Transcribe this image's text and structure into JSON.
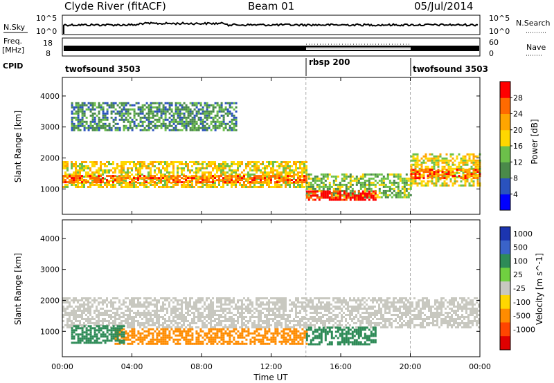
{
  "header": {
    "station": "Clyde River (fitACF)",
    "beam": "Beam 01",
    "date": "05/Jul/2014"
  },
  "top_panels": {
    "nsky_label": "N.Sky",
    "nsearch_label": "N.Search",
    "nsky_ticks": [
      "10^5",
      "10^0"
    ],
    "nsearch_ticks": [
      "10^5",
      "10^0"
    ],
    "freq_label": "Freq.",
    "freq_unit": "[MHz]",
    "freq_ticks": [
      "18",
      "8"
    ],
    "nave_label": "Nave",
    "nave_ticks": [
      "60",
      "0"
    ],
    "cpid_label": "CPID",
    "cpid_segments": [
      {
        "label": "twofsound 3503",
        "start": 0,
        "end": 14
      },
      {
        "label": "rbsp 200",
        "start": 14,
        "end": 20
      },
      {
        "label": "twofsound 3503",
        "start": 20,
        "end": 24
      }
    ]
  },
  "x_axis": {
    "label": "Time UT",
    "range": [
      0,
      24
    ],
    "tick_values": [
      0,
      4,
      8,
      12,
      16,
      20,
      24
    ],
    "tick_labels": [
      "00:00",
      "04:00",
      "08:00",
      "12:00",
      "16:00",
      "20:00",
      "00:00"
    ]
  },
  "power_panel": {
    "ylabel": "Slant Range [km]",
    "yticks": [
      1000,
      2000,
      3000,
      4000
    ],
    "ylim": [
      180,
      4600
    ],
    "colorbar_label": "Power [dB]",
    "colorbar_ticks": [
      "4",
      "8",
      "12",
      "16",
      "20",
      "24",
      "28"
    ],
    "colors": [
      "#0000ff",
      "#2a52be",
      "#4a8a4a",
      "#6cc04a",
      "#ffd700",
      "#ffa500",
      "#ff6a00",
      "#ff0000"
    ]
  },
  "velocity_panel": {
    "ylabel": "Slant Range [km]",
    "yticks": [
      1000,
      2000,
      3000,
      4000
    ],
    "ylim": [
      180,
      4600
    ],
    "colorbar_label": "Velocity [m s^-1]",
    "colorbar_ticks": [
      "1000",
      "500",
      "100",
      "25",
      "-25",
      "-100",
      "-500",
      "-1000"
    ],
    "colors": [
      "#1c35b0",
      "#3a63c9",
      "#2e8b57",
      "#70d040",
      "#c8c8c0",
      "#ffd700",
      "#ff8c00",
      "#ff4500",
      "#e00000"
    ]
  },
  "chart_data": {
    "type": "heatmap",
    "x": [
      0,
      24
    ],
    "mode_change_times": [
      14,
      20
    ],
    "power_bands": [
      {
        "t_start": 0.0,
        "t_end": 14.0,
        "range_low": 1050,
        "range_high": 1900,
        "power_db": 16
      },
      {
        "t_start": 0.0,
        "t_end": 14.0,
        "range_low": 1200,
        "range_high": 1450,
        "power_db": 24
      },
      {
        "t_start": 14.0,
        "t_end": 20.0,
        "range_low": 750,
        "range_high": 1500,
        "power_db": 12
      },
      {
        "t_start": 14.0,
        "t_end": 18.0,
        "range_low": 650,
        "range_high": 950,
        "power_db": 28
      },
      {
        "t_start": 20.0,
        "t_end": 24.0,
        "range_low": 1100,
        "range_high": 2150,
        "power_db": 16
      },
      {
        "t_start": 20.0,
        "t_end": 24.0,
        "range_low": 1350,
        "range_high": 1650,
        "power_db": 24
      },
      {
        "t_start": 0.5,
        "t_end": 10.0,
        "range_low": 2900,
        "range_high": 3800,
        "power_db": 8
      }
    ],
    "velocity_bands": [
      {
        "t_start": 0.0,
        "t_end": 24.0,
        "range_low": 1100,
        "range_high": 2100,
        "velocity": 0
      },
      {
        "t_start": 3.0,
        "t_end": 14.0,
        "range_low": 600,
        "range_high": 1100,
        "velocity": -150
      },
      {
        "t_start": 14.0,
        "t_end": 18.0,
        "range_low": 550,
        "range_high": 1150,
        "velocity": 80
      },
      {
        "t_start": 0.5,
        "t_end": 3.5,
        "range_low": 600,
        "range_high": 1200,
        "velocity": 120
      }
    ]
  }
}
